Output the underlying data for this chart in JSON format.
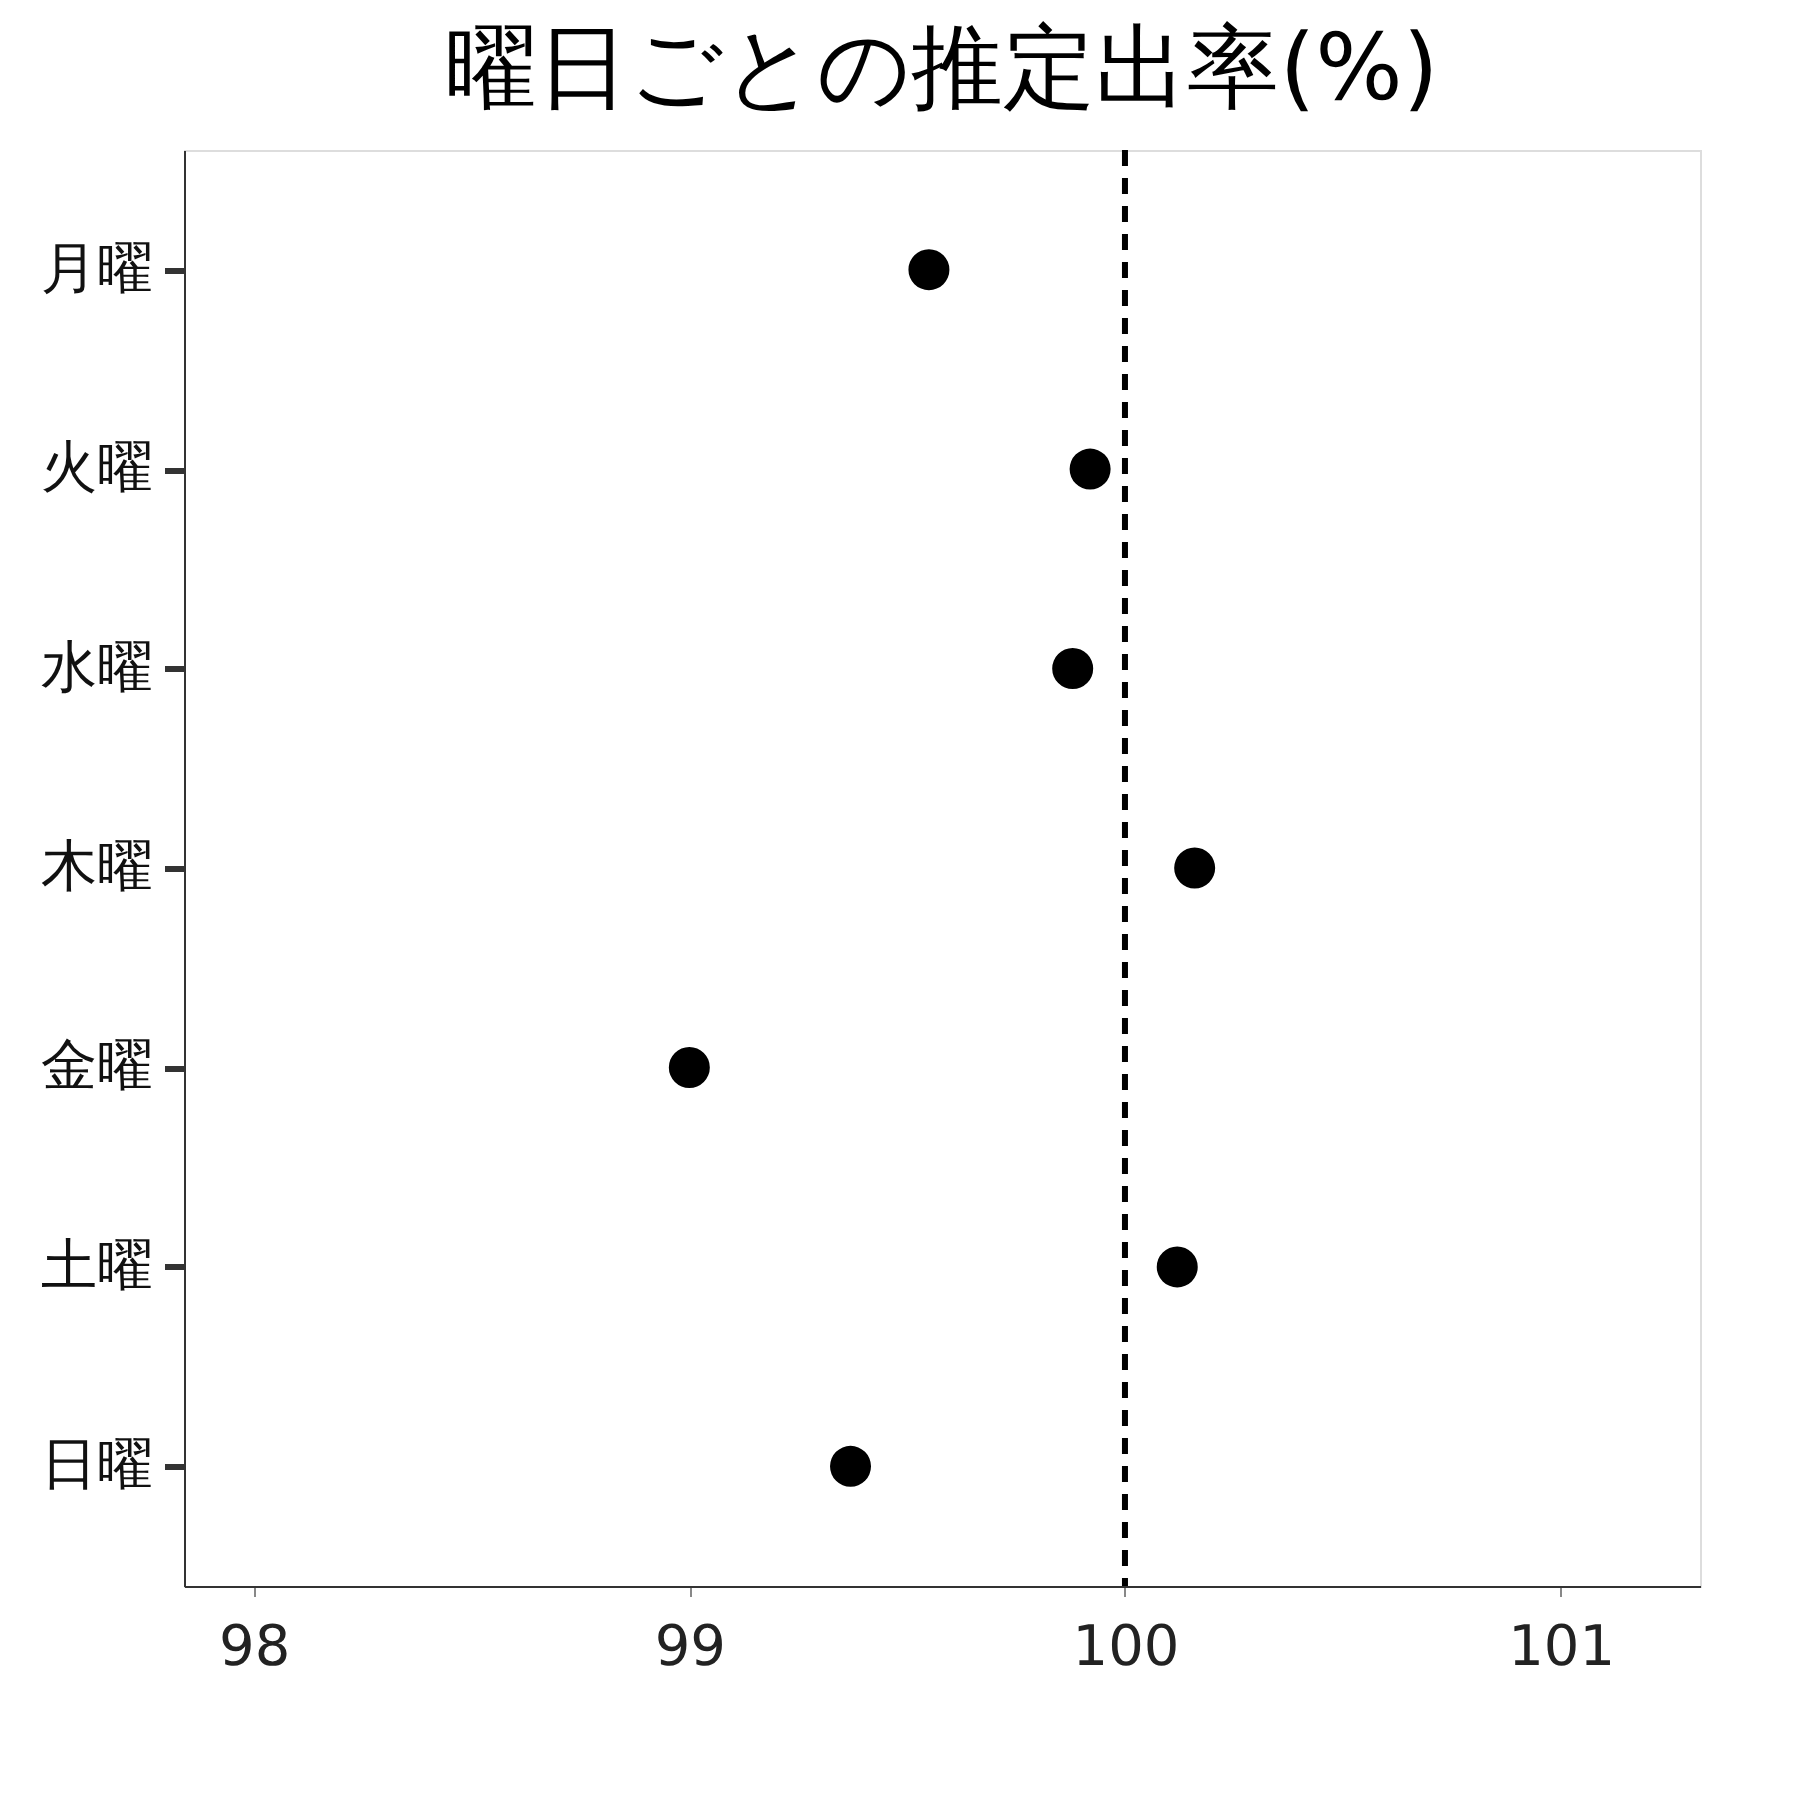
{
  "chart_data": {
    "type": "scatter",
    "title": "曜日ごとの推定出率(%)",
    "categories": [
      "月曜",
      "火曜",
      "水曜",
      "木曜",
      "金曜",
      "土曜",
      "日曜"
    ],
    "series": [
      {
        "color": "#000000",
        "values": [
          99.55,
          99.92,
          99.88,
          100.16,
          99.0,
          100.12,
          99.37
        ]
      }
    ],
    "orientation": "horizontal",
    "xlim": [
      97.84,
      101.32
    ],
    "xticks": [
      98,
      99,
      100,
      101
    ],
    "marker": "circle",
    "grid": false,
    "legend": false,
    "ref_lines": [
      {
        "axis": "x",
        "value": 100,
        "color": "#000000",
        "line_style": "dashed"
      }
    ]
  }
}
